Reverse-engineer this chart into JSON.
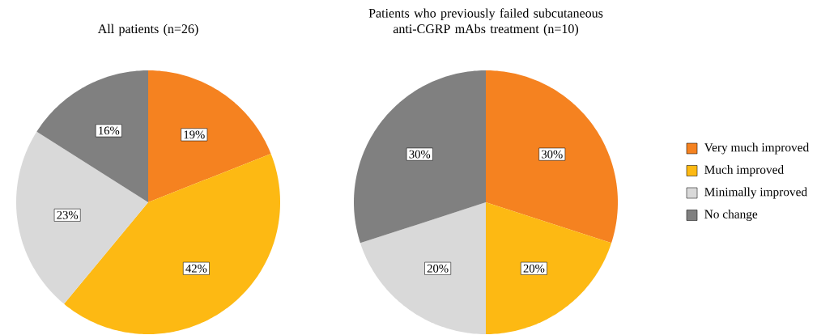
{
  "chart_data": [
    {
      "type": "pie",
      "title": "All patients (n=26)",
      "categories": [
        null,
        null,
        null,
        null
      ],
      "values": [
        19,
        42,
        23,
        16
      ],
      "colors": [
        "#f58220",
        "#fdb913",
        "#d9d9d9",
        "#808080"
      ],
      "value_labels": [
        "19%",
        "42%",
        "23%",
        "16%"
      ]
    },
    {
      "type": "pie",
      "title": "Patients who previously failed subcutaneous anti-CGRP mAbs treatment (n=10)",
      "categories": [
        "Very much improved",
        "Much improved",
        "Minimally improved",
        "No change"
      ],
      "values": [
        30,
        20,
        20,
        30
      ],
      "colors": [
        "#f58220",
        "#fdb913",
        "#d9d9d9",
        "#808080"
      ],
      "value_labels": [
        "30%",
        "20%",
        "20%",
        "30%"
      ],
      "legend": "right"
    }
  ]
}
